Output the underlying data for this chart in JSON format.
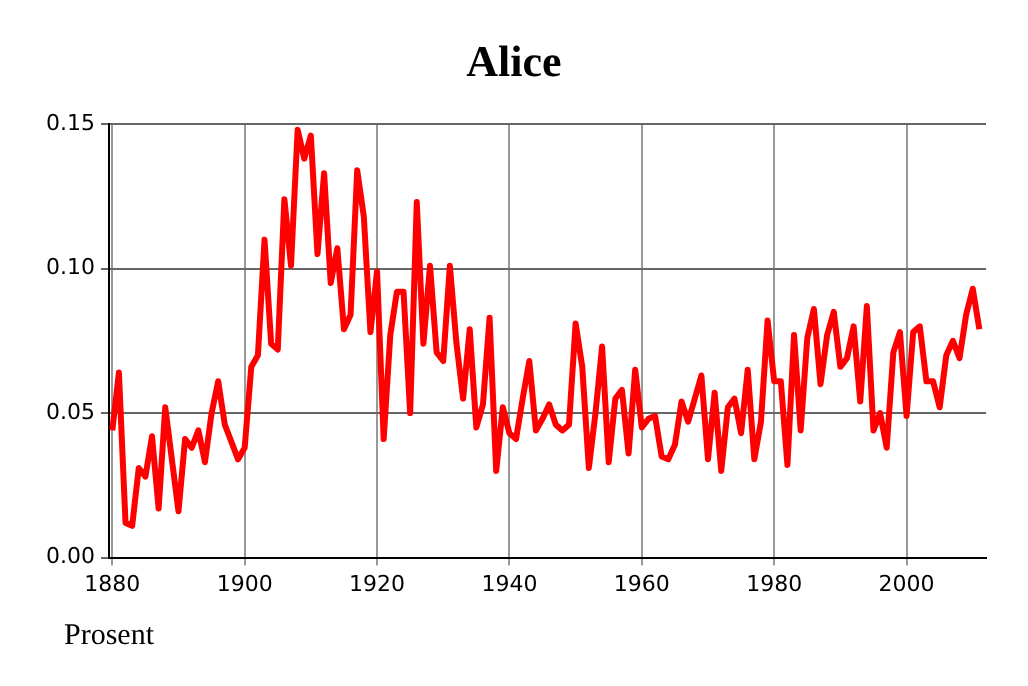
{
  "chart_data": {
    "type": "line",
    "title": "Alice",
    "ylabel": "Prosent",
    "x": [
      1880,
      1881,
      1882,
      1883,
      1884,
      1885,
      1886,
      1887,
      1888,
      1890,
      1891,
      1892,
      1893,
      1894,
      1895,
      1896,
      1897,
      1899,
      1900,
      1901,
      1902,
      1903,
      1904,
      1905,
      1906,
      1907,
      1908,
      1909,
      1910,
      1911,
      1912,
      1913,
      1914,
      1915,
      1916,
      1917,
      1918,
      1919,
      1920,
      1921,
      1922,
      1923,
      1924,
      1925,
      1926,
      1927,
      1928,
      1929,
      1930,
      1931,
      1932,
      1933,
      1934,
      1935,
      1936,
      1937,
      1938,
      1939,
      1940,
      1941,
      1942,
      1943,
      1944,
      1945,
      1946,
      1947,
      1948,
      1949,
      1950,
      1951,
      1952,
      1953,
      1954,
      1955,
      1956,
      1957,
      1958,
      1959,
      1960,
      1961,
      1962,
      1963,
      1964,
      1965,
      1966,
      1967,
      1969,
      1970,
      1971,
      1972,
      1973,
      1974,
      1975,
      1976,
      1977,
      1978,
      1979,
      1980,
      1981,
      1982,
      1983,
      1984,
      1985,
      1986,
      1987,
      1988,
      1989,
      1990,
      1991,
      1992,
      1993,
      1994,
      1995,
      1996,
      1997,
      1998,
      1999,
      2000,
      2001,
      2002,
      2003,
      2004,
      2005,
      2006,
      2007,
      2008,
      2009,
      2010,
      2011
    ],
    "series": [
      {
        "color": "#ff0000",
        "values": [
          0.044,
          0.064,
          0.012,
          0.011,
          0.031,
          0.028,
          0.042,
          0.017,
          0.052,
          0.016,
          0.041,
          0.038,
          0.044,
          0.033,
          0.05,
          0.061,
          0.046,
          0.034,
          0.038,
          0.066,
          0.07,
          0.11,
          0.074,
          0.072,
          0.124,
          0.101,
          0.148,
          0.138,
          0.146,
          0.105,
          0.133,
          0.095,
          0.107,
          0.079,
          0.084,
          0.134,
          0.118,
          0.078,
          0.099,
          0.041,
          0.077,
          0.092,
          0.092,
          0.05,
          0.123,
          0.074,
          0.101,
          0.071,
          0.068,
          0.101,
          0.074,
          0.055,
          0.079,
          0.045,
          0.053,
          0.083,
          0.03,
          0.052,
          0.043,
          0.041,
          0.055,
          0.068,
          0.044,
          0.048,
          0.053,
          0.046,
          0.044,
          0.046,
          0.081,
          0.066,
          0.031,
          0.05,
          0.073,
          0.033,
          0.055,
          0.058,
          0.036,
          0.065,
          0.045,
          0.048,
          0.049,
          0.035,
          0.034,
          0.039,
          0.054,
          0.047,
          0.063,
          0.034,
          0.057,
          0.03,
          0.052,
          0.055,
          0.043,
          0.065,
          0.034,
          0.047,
          0.082,
          0.061,
          0.061,
          0.032,
          0.077,
          0.044,
          0.076,
          0.086,
          0.06,
          0.077,
          0.085,
          0.066,
          0.069,
          0.08,
          0.054,
          0.087,
          0.044,
          0.05,
          0.038,
          0.071,
          0.078,
          0.049,
          0.078,
          0.08,
          0.061,
          0.061,
          0.052,
          0.07,
          0.075,
          0.069,
          0.084,
          0.093,
          0.079
        ]
      }
    ],
    "xlim": [
      1879.5,
      2012
    ],
    "xticks": [
      1880,
      1900,
      1920,
      1940,
      1960,
      1980,
      2000
    ],
    "ylim": [
      0,
      0.15
    ],
    "yticks": [
      {
        "value": 0,
        "label": "0.00"
      },
      {
        "value": 0.05,
        "label": "0.05"
      },
      {
        "value": 0.1,
        "label": "0.10"
      },
      {
        "value": 0.15,
        "label": "0.15"
      }
    ],
    "grid": true,
    "legend": false,
    "marker": "none",
    "line_style": "solid"
  }
}
